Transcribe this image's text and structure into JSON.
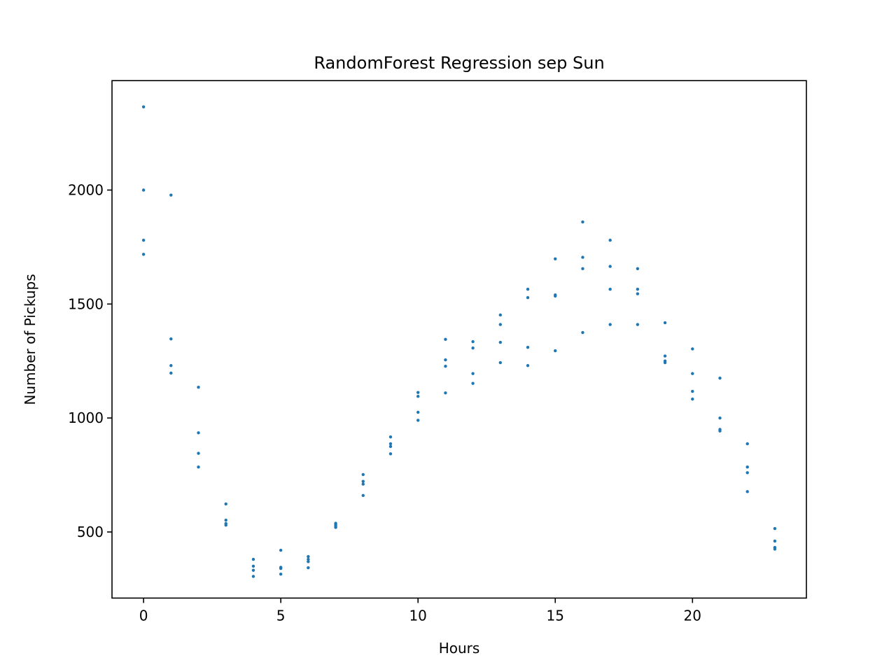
{
  "chart_data": {
    "type": "scatter",
    "title": "RandomForest Regression sep Sun",
    "xlabel": "Hours",
    "ylabel": "Number of Pickups",
    "xlim": [
      -1.15,
      24.15
    ],
    "ylim": [
      210,
      2480
    ],
    "xticks": [
      0,
      5,
      10,
      15,
      20
    ],
    "yticks": [
      500,
      1000,
      1500,
      2000
    ],
    "grid": false,
    "legend": "none",
    "marker_color": "#1f77b4",
    "series": [
      {
        "points": [
          [
            0,
            2365
          ],
          [
            0,
            2000
          ],
          [
            0,
            1780
          ],
          [
            0,
            1718
          ],
          [
            1,
            1978
          ],
          [
            1,
            1347
          ],
          [
            1,
            1230
          ],
          [
            1,
            1197
          ],
          [
            2,
            1135
          ],
          [
            2,
            935
          ],
          [
            2,
            845
          ],
          [
            2,
            785
          ],
          [
            3,
            623
          ],
          [
            3,
            552
          ],
          [
            3,
            537
          ],
          [
            3,
            530
          ],
          [
            4,
            380
          ],
          [
            4,
            350
          ],
          [
            4,
            332
          ],
          [
            4,
            305
          ],
          [
            5,
            420
          ],
          [
            5,
            345
          ],
          [
            5,
            340
          ],
          [
            5,
            315
          ],
          [
            6,
            392
          ],
          [
            6,
            380
          ],
          [
            6,
            370
          ],
          [
            6,
            343
          ],
          [
            7,
            538
          ],
          [
            7,
            532
          ],
          [
            7,
            526
          ],
          [
            7,
            520
          ],
          [
            8,
            752
          ],
          [
            8,
            722
          ],
          [
            8,
            710
          ],
          [
            8,
            660
          ],
          [
            9,
            917
          ],
          [
            9,
            887
          ],
          [
            9,
            875
          ],
          [
            9,
            843
          ],
          [
            10,
            1112
          ],
          [
            10,
            1095
          ],
          [
            10,
            1025
          ],
          [
            10,
            990
          ],
          [
            11,
            1345
          ],
          [
            11,
            1255
          ],
          [
            11,
            1227
          ],
          [
            11,
            1110
          ],
          [
            12,
            1335
          ],
          [
            12,
            1307
          ],
          [
            12,
            1195
          ],
          [
            12,
            1152
          ],
          [
            13,
            1452
          ],
          [
            13,
            1410
          ],
          [
            13,
            1332
          ],
          [
            13,
            1243
          ],
          [
            14,
            1565
          ],
          [
            14,
            1528
          ],
          [
            14,
            1310
          ],
          [
            14,
            1230
          ],
          [
            15,
            1698
          ],
          [
            15,
            1540
          ],
          [
            15,
            1535
          ],
          [
            15,
            1295
          ],
          [
            16,
            1860
          ],
          [
            16,
            1705
          ],
          [
            16,
            1655
          ],
          [
            16,
            1375
          ],
          [
            17,
            1780
          ],
          [
            17,
            1665
          ],
          [
            17,
            1565
          ],
          [
            17,
            1410
          ],
          [
            18,
            1655
          ],
          [
            18,
            1565
          ],
          [
            18,
            1545
          ],
          [
            18,
            1410
          ],
          [
            19,
            1418
          ],
          [
            19,
            1272
          ],
          [
            19,
            1250
          ],
          [
            19,
            1243
          ],
          [
            20,
            1303
          ],
          [
            20,
            1195
          ],
          [
            20,
            1117
          ],
          [
            20,
            1083
          ],
          [
            21,
            1175
          ],
          [
            21,
            1000
          ],
          [
            21,
            950
          ],
          [
            21,
            943
          ],
          [
            22,
            887
          ],
          [
            22,
            785
          ],
          [
            22,
            760
          ],
          [
            22,
            677
          ],
          [
            23,
            515
          ],
          [
            23,
            460
          ],
          [
            23,
            432
          ],
          [
            23,
            425
          ]
        ]
      }
    ]
  }
}
